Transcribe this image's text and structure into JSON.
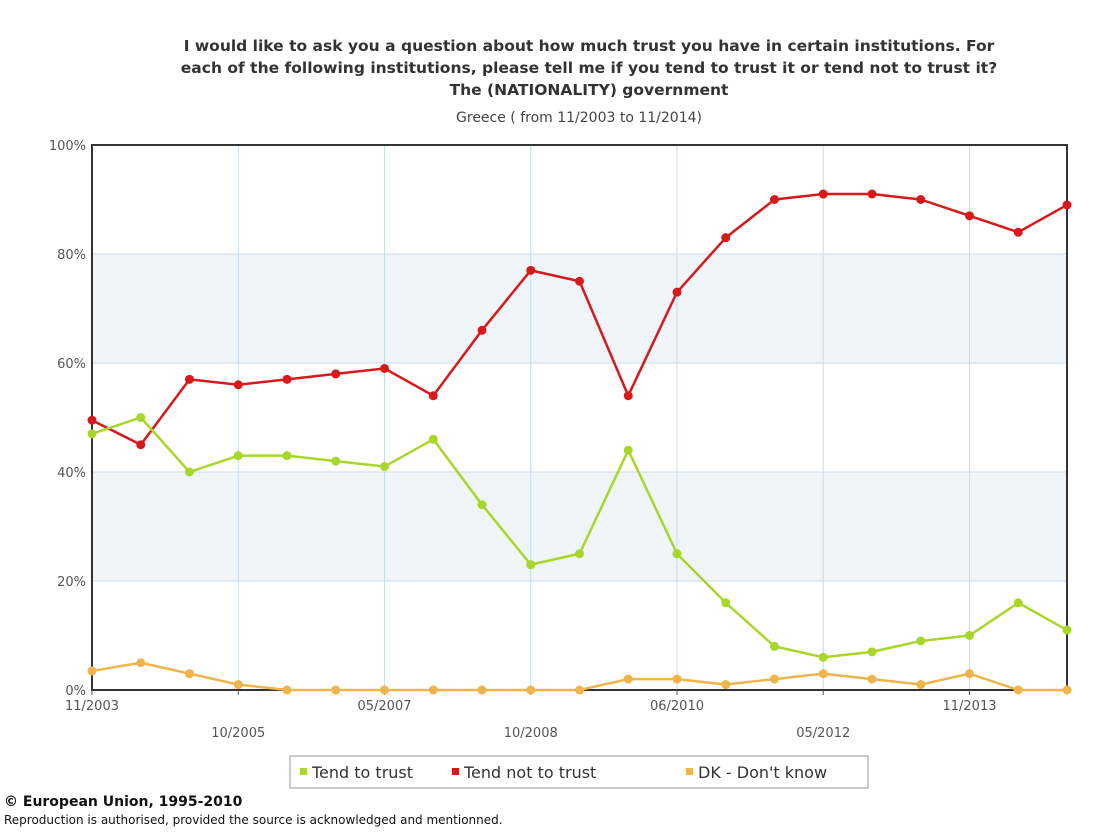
{
  "chart_data": {
    "type": "line",
    "title_lines": [
      "I would like to ask you a question about how much trust you have in certain institutions. For",
      "each of the following institutions, please tell me if you tend to trust it or tend not to trust it?",
      "The (NATIONALITY) government"
    ],
    "subtitle": "Greece ( from 11/2003 to 11/2014)",
    "ylim": [
      0,
      100
    ],
    "y_ticks": [
      "0%",
      "20%",
      "40%",
      "60%",
      "80%",
      "100%"
    ],
    "x_tick_labels": [
      {
        "index": 0,
        "label": "11/2003",
        "row": 1
      },
      {
        "index": 3,
        "label": "10/2005",
        "row": 2
      },
      {
        "index": 6,
        "label": "05/2007",
        "row": 1
      },
      {
        "index": 9,
        "label": "10/2008",
        "row": 2
      },
      {
        "index": 12,
        "label": "06/2010",
        "row": 1
      },
      {
        "index": 15,
        "label": "05/2012",
        "row": 2
      },
      {
        "index": 18,
        "label": "11/2013",
        "row": 1
      }
    ],
    "n_points": 21,
    "series": [
      {
        "name": "Tend to trust",
        "color": "#a8d62a",
        "values": [
          47,
          50,
          40,
          43,
          43,
          42,
          41,
          46,
          34,
          23,
          25,
          44,
          25,
          16,
          8,
          6,
          7,
          9,
          10,
          16,
          11
        ]
      },
      {
        "name": "Tend not to trust",
        "color": "#d7191c",
        "values": [
          49.5,
          45,
          57,
          56,
          57,
          58,
          59,
          54,
          66,
          77,
          75,
          54,
          73,
          83,
          90,
          91,
          91,
          90,
          87,
          84,
          89
        ]
      },
      {
        "name": "DK - Don't know",
        "color": "#f0b44c",
        "values": [
          3.5,
          5,
          3,
          1,
          0,
          0,
          0,
          0,
          0,
          0,
          0,
          2,
          2,
          1,
          2,
          3,
          2,
          1,
          3,
          0,
          0
        ]
      }
    ],
    "legend_position": "bottom",
    "grid": true
  },
  "footer": {
    "copyright": "© European Union, 1995-2010",
    "note": "Reproduction is authorised, provided the source is acknowledged and mentionned."
  }
}
